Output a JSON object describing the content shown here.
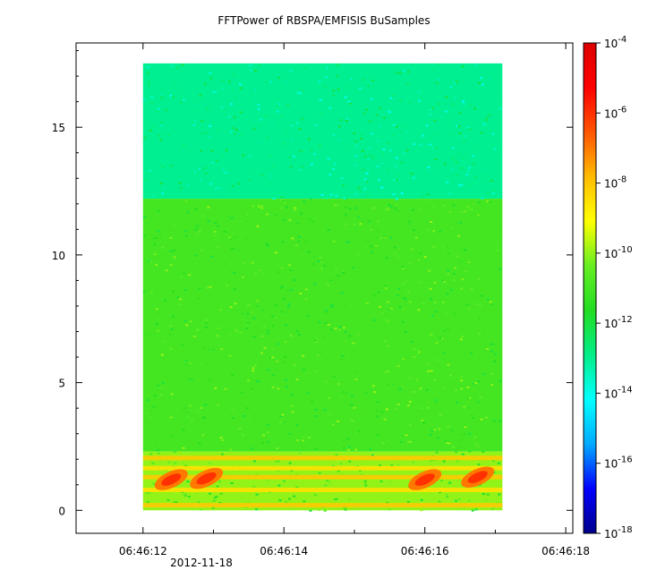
{
  "chart_data": {
    "type": "heatmap",
    "title": "FFTPower of RBSPA/EMFISIS  BuSamples",
    "xlabel": "",
    "ylabel": "",
    "x_ticks": [
      "06:46:12",
      "06:46:14",
      "06:46:16",
      "06:46:18"
    ],
    "x_date_label": "2012-11-18",
    "xlim": [
      "06:46:11.05",
      "06:46:18.10"
    ],
    "x_data_range": [
      "06:46:12.00",
      "06:46:17.10"
    ],
    "y_ticks": [
      0,
      5,
      10,
      15
    ],
    "ylim": [
      -0.9,
      18.3
    ],
    "y_data_range": [
      0,
      17.5
    ],
    "colorbar": {
      "scale": "log",
      "range": [
        1e-18,
        0.0001
      ],
      "tick_labels": [
        {
          "base": "10",
          "exp": "-4",
          "value": 0.0001
        },
        {
          "base": "10",
          "exp": "-6",
          "value": 1e-06
        },
        {
          "base": "10",
          "exp": "-8",
          "value": 1e-08
        },
        {
          "base": "10",
          "exp": "-10",
          "value": 1e-10
        },
        {
          "base": "10",
          "exp": "-12",
          "value": 1e-12
        },
        {
          "base": "10",
          "exp": "-14",
          "value": 1e-14
        },
        {
          "base": "10",
          "exp": "-16",
          "value": 1e-16
        },
        {
          "base": "10",
          "exp": "-18",
          "value": 1e-18
        }
      ],
      "colors": [
        "#00008b",
        "#0000ff",
        "#00aaff",
        "#00ffff",
        "#00ee88",
        "#22dd22",
        "#66ee22",
        "#ffff00",
        "#ffbb00",
        "#ff5500",
        "#ff0000",
        "#dd0000"
      ]
    },
    "features": {
      "upper_band": {
        "y_range": [
          12.2,
          17.5
        ],
        "power": 1e-13
      },
      "lower_band": {
        "y_range": [
          2.3,
          12.2
        ],
        "power": 1e-11
      },
      "bright_lines_y": [
        0.2,
        0.8,
        1.3,
        1.65,
        2.05
      ],
      "hot_spots": [
        {
          "x": "06:46:12.40",
          "y": 1.2,
          "power": 1e-06
        },
        {
          "x": "06:46:12.90",
          "y": 1.25,
          "power": 1e-06
        },
        {
          "x": "06:46:16.00",
          "y": 1.2,
          "power": 1e-06
        },
        {
          "x": "06:46:16.75",
          "y": 1.3,
          "power": 1e-06
        }
      ]
    },
    "grid": false,
    "legend": "colorbar-right"
  }
}
